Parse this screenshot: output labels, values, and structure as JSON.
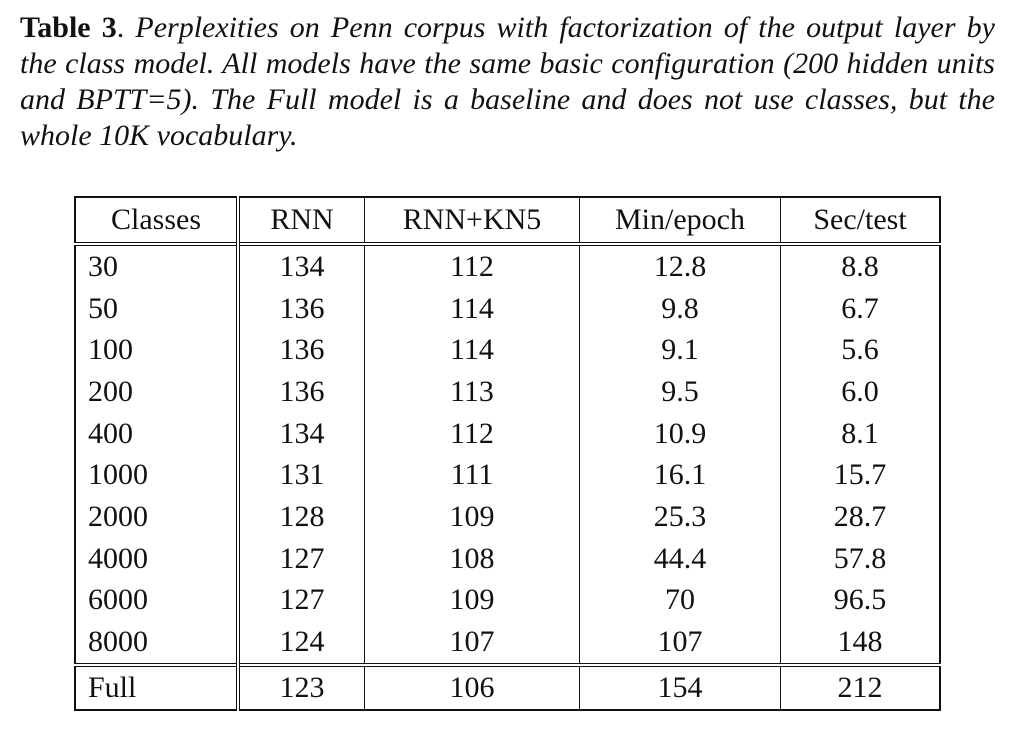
{
  "caption": {
    "label": "Table 3",
    "dot": ".",
    "text": " Perplexities on Penn corpus with factorization of the output layer by the class model. All models have the same basic configuration (200 hidden units and BPTT=5). The Full model is a baseline and does not use classes, but the whole 10K vocabulary."
  },
  "table": {
    "headers": [
      "Classes",
      "RNN",
      "RNN+KN5",
      "Min/epoch",
      "Sec/test"
    ],
    "rows": [
      [
        "30",
        "134",
        "112",
        "12.8",
        "8.8"
      ],
      [
        "50",
        "136",
        "114",
        "9.8",
        "6.7"
      ],
      [
        "100",
        "136",
        "114",
        "9.1",
        "5.6"
      ],
      [
        "200",
        "136",
        "113",
        "9.5",
        "6.0"
      ],
      [
        "400",
        "134",
        "112",
        "10.9",
        "8.1"
      ],
      [
        "1000",
        "131",
        "111",
        "16.1",
        "15.7"
      ],
      [
        "2000",
        "128",
        "109",
        "25.3",
        "28.7"
      ],
      [
        "4000",
        "127",
        "108",
        "44.4",
        "57.8"
      ],
      [
        "6000",
        "127",
        "109",
        "70",
        "96.5"
      ],
      [
        "8000",
        "124",
        "107",
        "107",
        "148"
      ],
      [
        "Full",
        "123",
        "106",
        "154",
        "212"
      ]
    ]
  }
}
